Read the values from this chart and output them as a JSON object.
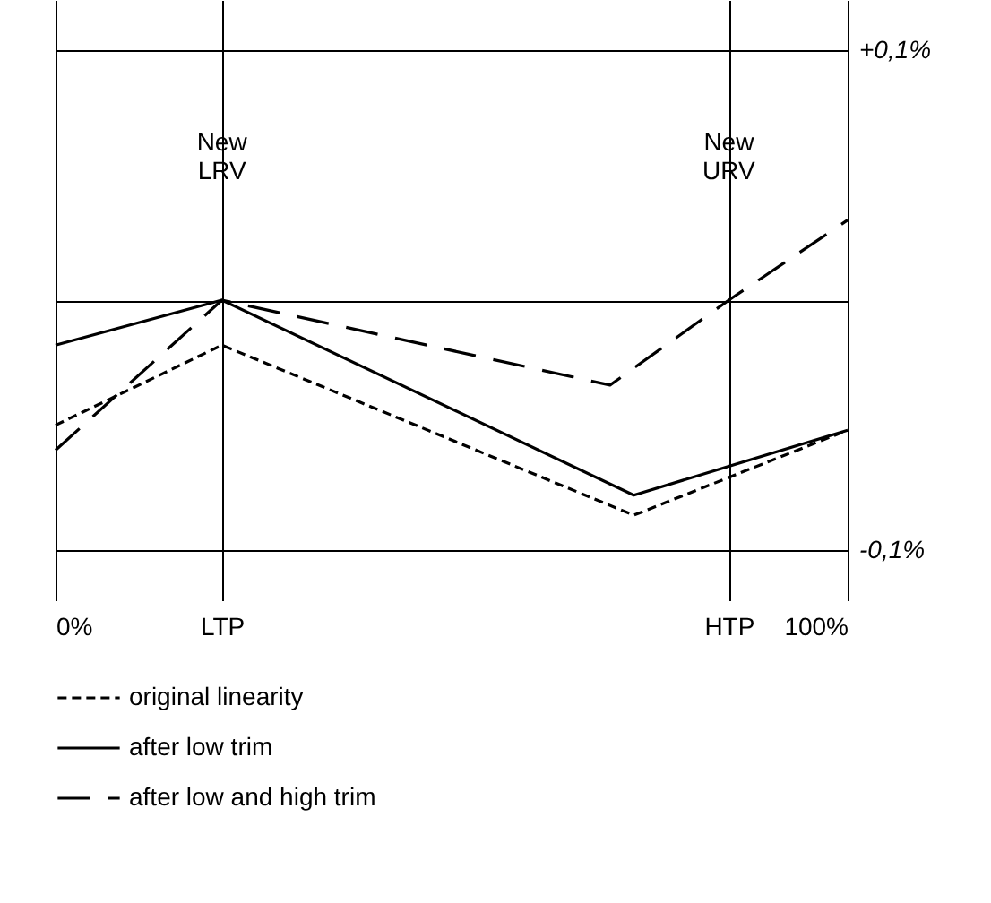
{
  "chart_data": {
    "type": "line",
    "xlim": [
      0,
      100
    ],
    "xticks": [
      {
        "value": 0,
        "label": "0%"
      },
      {
        "value": 21,
        "label": "LTP"
      },
      {
        "value": 85,
        "label": "HTP"
      },
      {
        "value": 100,
        "label": "100%"
      }
    ],
    "ylim": [
      -0.12,
      0.12
    ],
    "yticks": [
      {
        "value": 0.1,
        "label": "+0,1%"
      },
      {
        "value": 0,
        "label": null
      },
      {
        "value": -0.1,
        "label": "-0,1%"
      }
    ],
    "grid": true,
    "legend": "bottom left",
    "ref_lines": [
      {
        "axis": "x",
        "value": 21,
        "label": "New LRV"
      },
      {
        "axis": "x",
        "value": 85,
        "label": "New URV"
      }
    ],
    "series": [
      {
        "name": "original linearity",
        "color": "#000000",
        "line_style": "dotted",
        "x": [
          0,
          21,
          73,
          100
        ],
        "values": [
          -0.05,
          -0.018,
          -0.086,
          -0.052
        ]
      },
      {
        "name": "after low trim",
        "color": "#000000",
        "line_style": "solid",
        "x": [
          0,
          21,
          73,
          100
        ],
        "values": [
          -0.018,
          0,
          -0.078,
          -0.052
        ]
      },
      {
        "name": "after low and high trim",
        "color": "#000000",
        "line_style": "dashed",
        "x": [
          0,
          21,
          70,
          85,
          100
        ],
        "values": [
          -0.06,
          0,
          -0.034,
          0,
          0.032
        ]
      }
    ]
  }
}
